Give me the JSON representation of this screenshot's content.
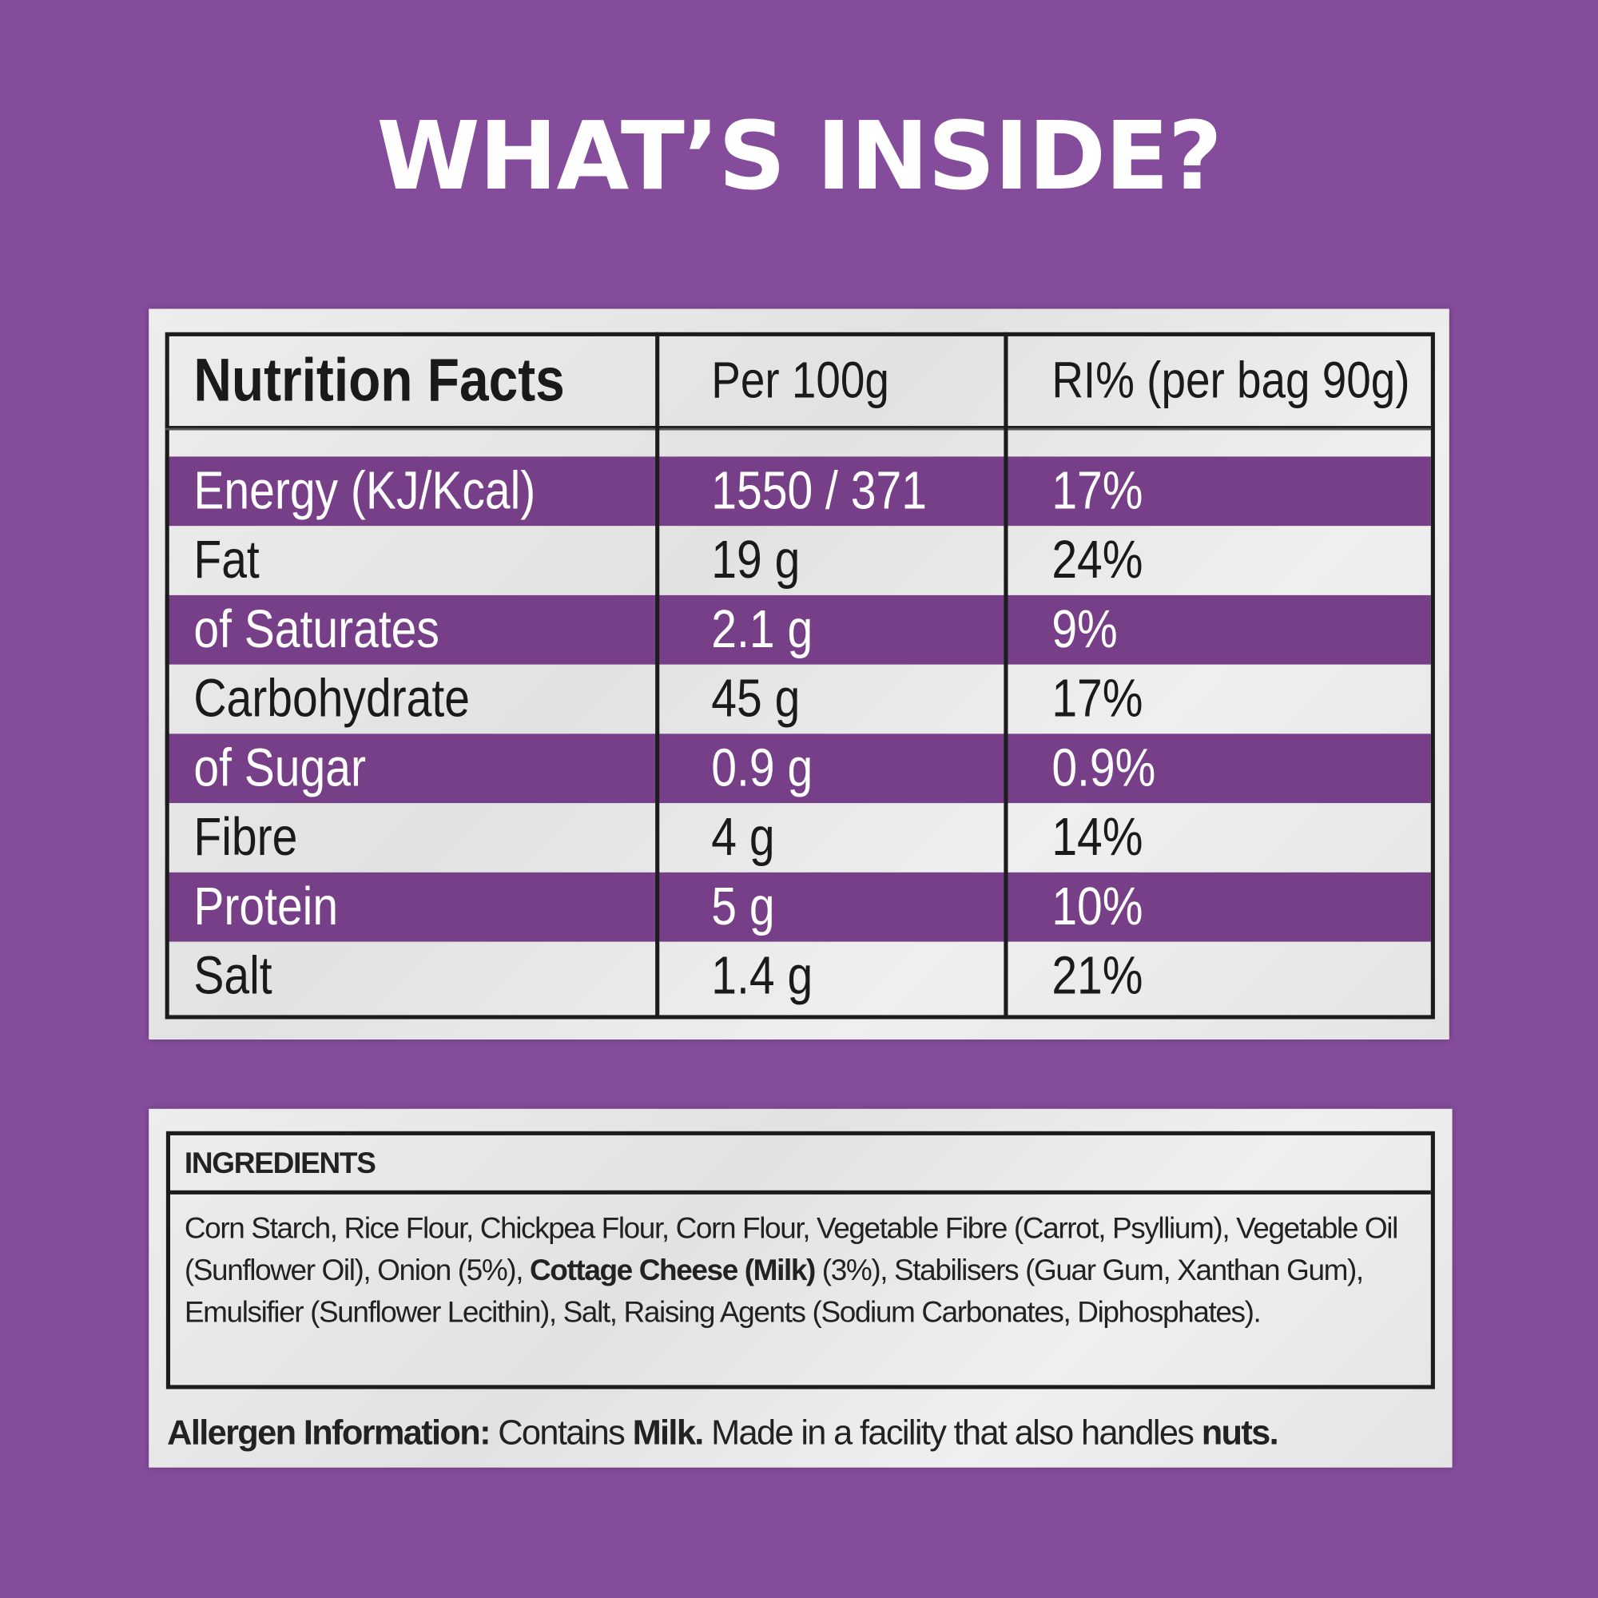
{
  "header": {
    "title": "WHAT’S INSIDE?"
  },
  "nutrition_table": {
    "columns": [
      "Nutrition Facts",
      "Per 100g",
      "RI% (per bag 90g)"
    ],
    "rows": [
      [
        "Energy (KJ/Kcal)",
        "1550 / 371",
        "17%"
      ],
      [
        "Fat",
        "19 g",
        "24%"
      ],
      [
        "of Saturates",
        "2.1 g",
        "9%"
      ],
      [
        "Carbohydrate",
        "45 g",
        "17%"
      ],
      [
        "of Sugar",
        "0.9 g",
        "0.9%"
      ],
      [
        "Fibre",
        "4 g",
        "14%"
      ],
      [
        "Protein",
        "5 g",
        "10%"
      ],
      [
        "Salt",
        "1.4 g",
        "21%"
      ]
    ]
  },
  "ingredients": {
    "heading": "INGREDIENTS",
    "segments": [
      {
        "text": "Corn Starch, Rice Flour, Chickpea Flour, Corn Flour, Vegetable Fibre (Carrot, Psyllium), Vegetable Oil (Sunflower Oil), Onion (5%), ",
        "bold": false
      },
      {
        "text": "Cottage Cheese (Milk)",
        "bold": true
      },
      {
        "text": " (3%), Stabilisers (Guar Gum, Xanthan Gum), Emulsifier (Sunflower Lecithin), Salt, Raising Agents (Sodium Carbonates, Diphosphates).",
        "bold": false
      }
    ]
  },
  "allergen": {
    "segments": [
      {
        "text": "Allergen Information:",
        "bold": true
      },
      {
        "text": " Contains ",
        "bold": false
      },
      {
        "text": "Milk.",
        "bold": true
      },
      {
        "text": " Made in a facility that also handles ",
        "bold": false
      },
      {
        "text": "nuts.",
        "bold": true
      }
    ]
  }
}
